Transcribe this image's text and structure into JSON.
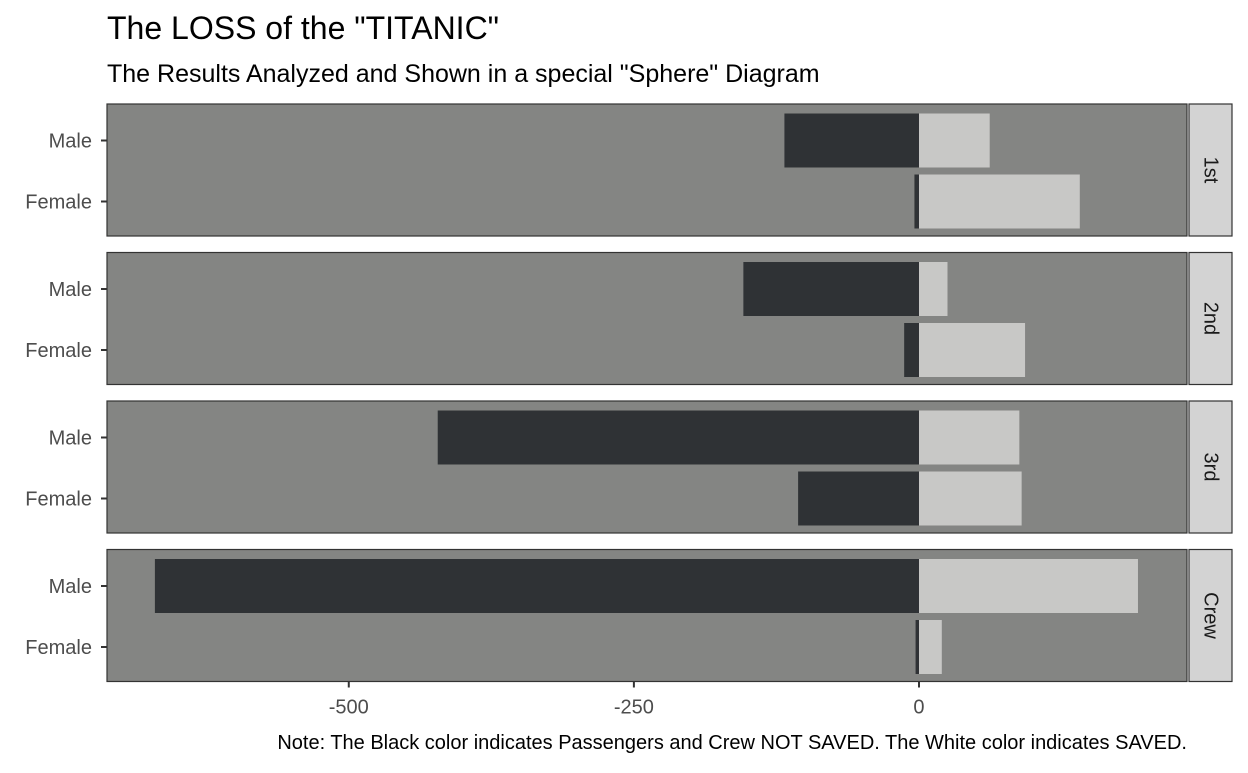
{
  "chart_data": {
    "type": "bar",
    "orientation": "horizontal",
    "title": "The LOSS of the \"TITANIC\"",
    "subtitle": "The Results Analyzed and Shown in a special \"Sphere\" Diagram",
    "caption": "Note: The Black color indicates Passengers and Crew NOT SAVED. The White color indicates SAVED.",
    "xlabel": "",
    "ylabel": "",
    "xlim": [
      -712,
      235
    ],
    "x_ticks": [
      -500,
      -250,
      0
    ],
    "x_tick_labels": [
      "-500",
      "-250",
      "0"
    ],
    "categories": [
      "Male",
      "Female"
    ],
    "facets": [
      {
        "label": "1st",
        "not_saved": [
          -118,
          -4
        ],
        "saved": [
          62,
          141
        ]
      },
      {
        "label": "2nd",
        "not_saved": [
          -154,
          -13
        ],
        "saved": [
          25,
          93
        ]
      },
      {
        "label": "3rd",
        "not_saved": [
          -422,
          -106
        ],
        "saved": [
          88,
          90
        ]
      },
      {
        "label": "Crew",
        "not_saved": [
          -670,
          -3
        ],
        "saved": [
          192,
          20
        ]
      }
    ],
    "series_colors": {
      "not_saved": "#2f3235",
      "saved": "#c8c8c6"
    },
    "panel_background": "#848583",
    "strip_background": "#d3d3d3",
    "grid": false
  }
}
